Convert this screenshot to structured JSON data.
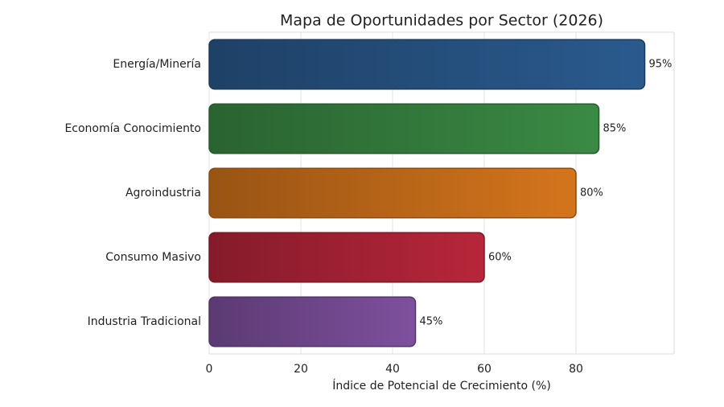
{
  "chart_data": {
    "type": "barh",
    "title": "Mapa de Oportunidades por Sector (2026)",
    "x_label": "Índice de Potencial de Crecimiento (%)",
    "categories": [
      "Energía/Minería",
      "Economía Conocimiento",
      "Agroindustria",
      "Consumo Masivo",
      "Industria Tradicional"
    ],
    "values": [
      95,
      85,
      80,
      60,
      45
    ],
    "value_labels": [
      "95%",
      "85%",
      "80%",
      "60%",
      "45%"
    ],
    "colors": [
      "#2a5a8e",
      "#3a8a44",
      "#d4751c",
      "#b8263a",
      "#7e509e"
    ],
    "xlim": [
      0,
      101.4
    ],
    "xticks": [
      0,
      20,
      40,
      60,
      80
    ],
    "grid": true
  }
}
